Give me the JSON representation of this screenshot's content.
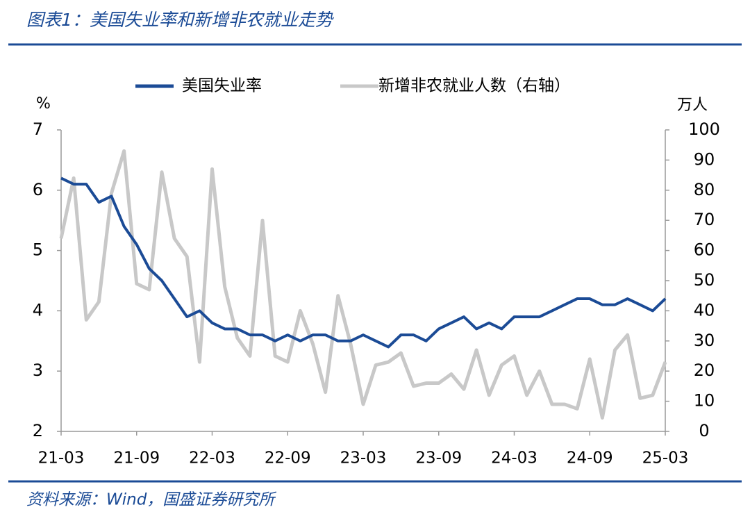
{
  "chart_data": {
    "type": "line",
    "title": "图表1：美国失业率和新增非农就业走势",
    "source": "资料来源：Wind，国盛证券研究所",
    "y_unit": "%",
    "y2_unit": "万人",
    "categories": [
      "21-03",
      null,
      null,
      null,
      null,
      null,
      "21-09",
      null,
      null,
      null,
      null,
      null,
      "22-03",
      null,
      null,
      null,
      null,
      null,
      "22-09",
      null,
      null,
      null,
      null,
      null,
      "23-03",
      null,
      null,
      null,
      null,
      null,
      "23-09",
      null,
      null,
      null,
      null,
      null,
      "24-03",
      null,
      null,
      null,
      null,
      null,
      "24-09",
      null,
      null,
      null,
      null,
      null,
      "25-03"
    ],
    "series": [
      {
        "name": "美国失业率",
        "color": "#1b4b96",
        "axis": "y",
        "values": [
          6.2,
          6.1,
          6.1,
          5.8,
          5.9,
          5.4,
          5.1,
          4.7,
          4.5,
          4.2,
          3.9,
          4.0,
          3.8,
          3.7,
          3.7,
          3.6,
          3.6,
          3.5,
          3.6,
          3.5,
          3.6,
          3.6,
          3.5,
          3.5,
          3.6,
          3.5,
          3.4,
          3.6,
          3.6,
          3.5,
          3.7,
          3.8,
          3.9,
          3.7,
          3.8,
          3.7,
          3.9,
          3.9,
          3.9,
          4.0,
          4.1,
          4.2,
          4.2,
          4.1,
          4.1,
          4.2,
          4.1,
          4.0,
          4.2
        ]
      },
      {
        "name": "新增非农就业人数（右轴）",
        "color": "#c8c8c8",
        "axis": "y2",
        "values": [
          64,
          84,
          37,
          43,
          79,
          93,
          49,
          47,
          86,
          64,
          58,
          23,
          87,
          48,
          31,
          25,
          70,
          25,
          23,
          40,
          29,
          13,
          45,
          29,
          9,
          22,
          23,
          26,
          15,
          16,
          16,
          19,
          14,
          27,
          12,
          22,
          25,
          12,
          20,
          9,
          9,
          7.5,
          24,
          4.5,
          27,
          32,
          11,
          12,
          23
        ]
      }
    ],
    "ylim": [
      2,
      7
    ],
    "yticks": [
      2,
      3,
      4,
      5,
      6,
      7
    ],
    "y2lim": [
      0,
      100
    ],
    "y2ticks": [
      0,
      10,
      20,
      30,
      40,
      50,
      60,
      70,
      80,
      90,
      100
    ]
  }
}
